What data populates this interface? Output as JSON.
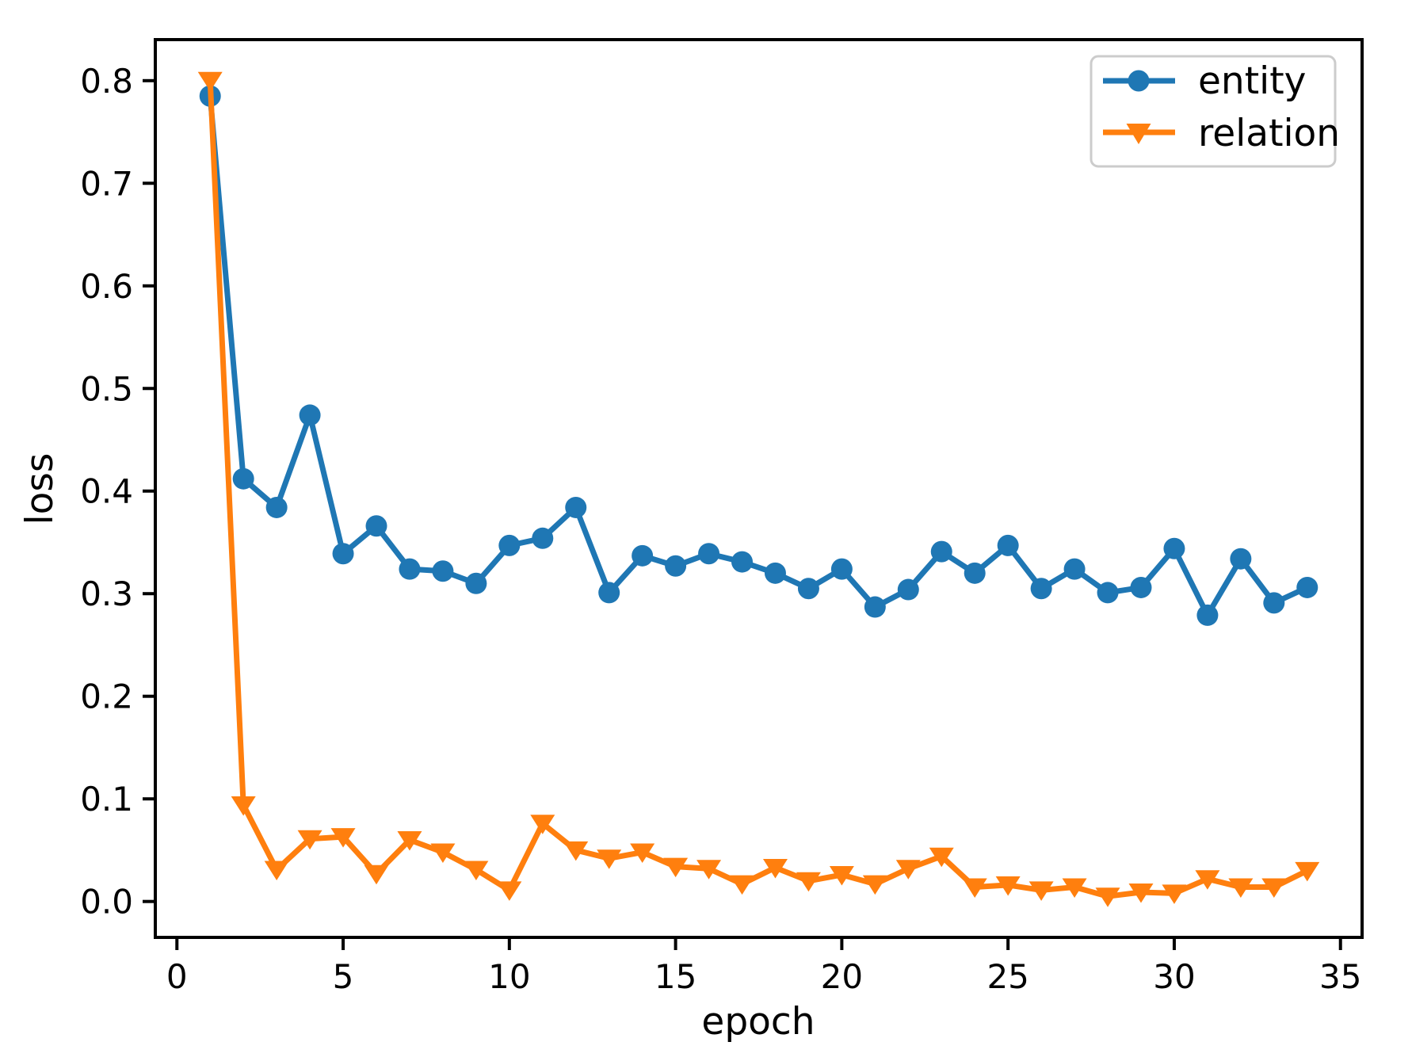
{
  "chart_data": {
    "type": "line",
    "title": "",
    "xlabel": "epoch",
    "ylabel": "loss",
    "xlim": [
      -0.65,
      35.65
    ],
    "ylim": [
      -0.035,
      0.84
    ],
    "xticks": [
      0,
      5,
      10,
      15,
      20,
      25,
      30,
      35
    ],
    "yticks": [
      0.0,
      0.1,
      0.2,
      0.3,
      0.4,
      0.5,
      0.6,
      0.7,
      0.8
    ],
    "grid": false,
    "legend_position": "upper right",
    "x": [
      1,
      2,
      3,
      4,
      5,
      6,
      7,
      8,
      9,
      10,
      11,
      12,
      13,
      14,
      15,
      16,
      17,
      18,
      19,
      20,
      21,
      22,
      23,
      24,
      25,
      26,
      27,
      28,
      29,
      30,
      31,
      32,
      33,
      34
    ],
    "series": [
      {
        "name": "entity",
        "color": "#1f77b4",
        "marker": "circle",
        "values": [
          0.785,
          0.412,
          0.384,
          0.474,
          0.339,
          0.366,
          0.324,
          0.322,
          0.31,
          0.347,
          0.354,
          0.384,
          0.301,
          0.337,
          0.327,
          0.339,
          0.331,
          0.32,
          0.305,
          0.324,
          0.287,
          0.304,
          0.341,
          0.32,
          0.347,
          0.305,
          0.324,
          0.301,
          0.306,
          0.344,
          0.279,
          0.334,
          0.291,
          0.306
        ]
      },
      {
        "name": "relation",
        "color": "#ff7f0e",
        "marker": "triangle-down",
        "values": [
          0.8,
          0.094,
          0.031,
          0.061,
          0.063,
          0.027,
          0.06,
          0.048,
          0.031,
          0.011,
          0.076,
          0.05,
          0.042,
          0.048,
          0.034,
          0.032,
          0.017,
          0.033,
          0.02,
          0.026,
          0.017,
          0.032,
          0.044,
          0.014,
          0.016,
          0.011,
          0.014,
          0.005,
          0.009,
          0.008,
          0.022,
          0.014,
          0.014,
          0.03
        ]
      }
    ],
    "colors": {
      "spine": "#000000",
      "background": "#ffffff",
      "legend_border": "#cccccc"
    }
  }
}
